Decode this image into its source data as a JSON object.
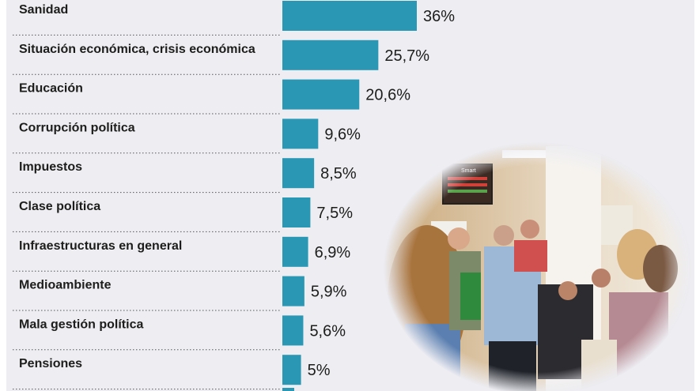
{
  "colors": {
    "bar": "#2a98b5",
    "panel": "#ededf2",
    "text": "#1d1d1b"
  },
  "photo": {
    "description_icon": "waiting-room-photo",
    "screen_text": "Smart"
  },
  "chart_data": {
    "type": "bar",
    "orientation": "horizontal",
    "title": "",
    "xlabel": "",
    "ylabel": "",
    "xlim": [
      0,
      36
    ],
    "grid": false,
    "categories": [
      "Sanidad",
      "Situación económica, crisis económica",
      "Educación",
      "Corrupción política",
      "Impuestos",
      "Clase política",
      "Infraestructuras en general",
      "Medioambiente",
      "Mala gestión política",
      "Pensiones"
    ],
    "values": [
      36,
      25.7,
      20.6,
      9.6,
      8.5,
      7.5,
      6.9,
      5.9,
      5.6,
      5
    ],
    "value_labels": [
      "36%",
      "25,7%",
      "20,6%",
      "9,6%",
      "8,5%",
      "7,5%",
      "6,9%",
      "5,9%",
      "5,6%",
      "5%"
    ]
  }
}
